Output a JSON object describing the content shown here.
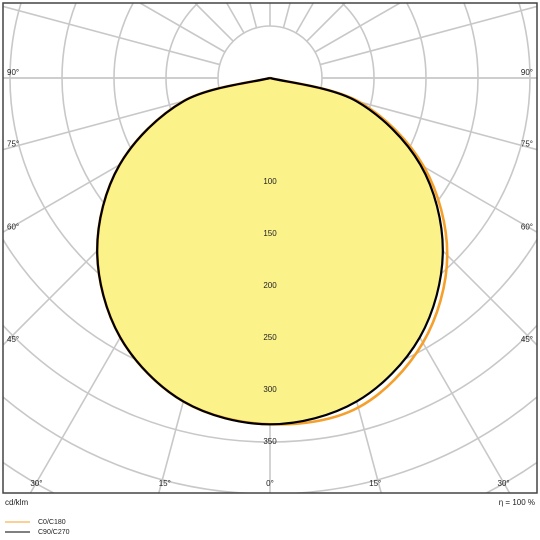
{
  "chart_data": {
    "type": "polar",
    "angles": [
      -90,
      -75,
      -60,
      -45,
      -30,
      -15,
      0,
      15,
      30,
      45,
      60,
      75,
      90
    ],
    "series": [
      {
        "name": "C0/C180",
        "color": "#f5a02a",
        "values": [
          0,
          86,
          167,
          235,
          288,
          322,
          333,
          328,
          294,
          241,
          171,
          89,
          0
        ]
      },
      {
        "name": "C90/C270",
        "color": "#000000",
        "values": [
          0,
          86,
          167,
          235,
          288,
          322,
          333,
          322,
          288,
          235,
          167,
          86,
          0
        ]
      }
    ],
    "fill": "#fbf28a",
    "rticks": [
      100,
      150,
      200,
      250,
      300,
      350
    ],
    "rgrid": [
      50,
      100,
      150,
      200,
      250,
      300,
      350,
      400,
      450
    ],
    "aticks": [
      {
        "value": -90,
        "label": "90°"
      },
      {
        "value": -75,
        "label": "75°"
      },
      {
        "value": -60,
        "label": "60°"
      },
      {
        "value": -45,
        "label": "45°"
      },
      {
        "value": -30,
        "label": "30°"
      },
      {
        "value": -15,
        "label": "15°"
      },
      {
        "value": 0,
        "label": "0°"
      },
      {
        "value": 15,
        "label": "15°"
      },
      {
        "value": 30,
        "label": "30°"
      },
      {
        "value": 45,
        "label": "45°"
      },
      {
        "value": 60,
        "label": "60°"
      },
      {
        "value": 75,
        "label": "75°"
      },
      {
        "value": 90,
        "label": "90°"
      }
    ],
    "unit_label": "cd/klm",
    "efficiency_label": "η = 100 %"
  }
}
